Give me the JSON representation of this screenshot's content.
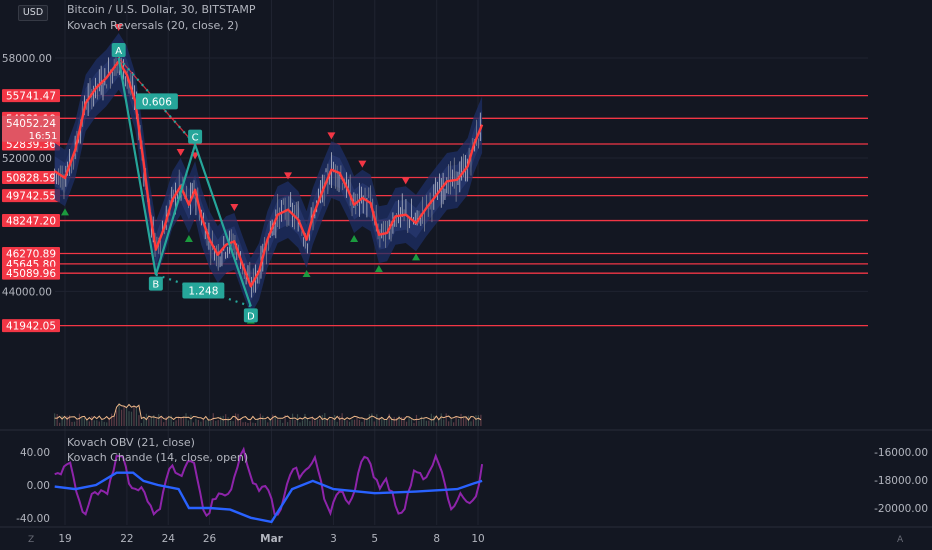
{
  "header": {
    "currency": "USD",
    "title": "Bitcoin / U.S. Dollar, 30, BITSTAMP",
    "indicator": "Kovach Reversals (20, close, 2)"
  },
  "lower_pane": {
    "line1": "Kovach OBV (21, close)",
    "line2": "Kovach Chande (14, close, open)",
    "left_ticks": [
      "40.00",
      "0.00",
      "-40.00"
    ],
    "right_ticks": [
      "-16000.00",
      "-18000.00",
      "-20000.00"
    ]
  },
  "corner_left": "Z",
  "corner_right": "A",
  "colors": {
    "bg": "#131722",
    "red": "#f23645",
    "teal": "#26a69a",
    "blue": "#2962ff",
    "purple": "#8e24aa",
    "green": "#089981"
  },
  "chart_data": {
    "type": "line",
    "axis_prices": [
      "58000.00",
      "52000.00",
      "44000.00"
    ],
    "level_labels": [
      {
        "price": 55741.47,
        "label": "55741.47"
      },
      {
        "price": 54381.19,
        "label": "54381.19"
      },
      {
        "price": 52839.36,
        "label": "52839.36"
      },
      {
        "price": 50828.59,
        "label": "50828.59"
      },
      {
        "price": 49742.55,
        "label": "49742.55"
      },
      {
        "price": 48247.2,
        "label": "48247.20"
      },
      {
        "price": 46270.89,
        "label": "46270.89"
      },
      {
        "price": 45645.8,
        "label": "45645.80"
      },
      {
        "price": 45089.96,
        "label": "45089.96"
      },
      {
        "price": 41942.05,
        "label": "41942.05"
      }
    ],
    "last_price": {
      "price": "54052.24",
      "countdown": "16:51"
    },
    "x_labels": [
      {
        "day": 19,
        "label": "19"
      },
      {
        "day": 22,
        "label": "22"
      },
      {
        "day": 24,
        "label": "24"
      },
      {
        "day": 26,
        "label": "26"
      },
      {
        "day": 29,
        "label": "Mar"
      },
      {
        "day": 32,
        "label": "3"
      },
      {
        "day": 34,
        "label": "5"
      },
      {
        "day": 37,
        "label": "8"
      },
      {
        "day": 39,
        "label": "10"
      }
    ],
    "pattern": [
      {
        "label": "A",
        "day": 21.6,
        "price": 58000
      },
      {
        "label": "B",
        "day": 23.4,
        "price": 45000
      },
      {
        "label": "C",
        "day": 25.3,
        "price": 52800
      },
      {
        "label": "D",
        "day": 28.0,
        "price": 43100
      }
    ],
    "ratios": [
      "0.606",
      "1.248"
    ],
    "series": [
      {
        "values": [
          [
            18.5,
            51200
          ],
          [
            19,
            50800
          ],
          [
            19.5,
            52500
          ],
          [
            20,
            55300
          ],
          [
            20.5,
            56200
          ],
          [
            21,
            56800
          ],
          [
            21.6,
            57800
          ],
          [
            22,
            57000
          ],
          [
            22.4,
            55400
          ],
          [
            22.8,
            51800
          ],
          [
            23.1,
            48800
          ],
          [
            23.4,
            46500
          ],
          [
            23.8,
            47800
          ],
          [
            24.2,
            49500
          ],
          [
            24.6,
            50300
          ],
          [
            25,
            49200
          ],
          [
            25.3,
            50100
          ],
          [
            25.6,
            48500
          ],
          [
            26,
            47100
          ],
          [
            26.4,
            46200
          ],
          [
            26.8,
            46800
          ],
          [
            27.2,
            47000
          ],
          [
            27.6,
            45600
          ],
          [
            28,
            44300
          ],
          [
            28.4,
            45200
          ],
          [
            28.8,
            47100
          ],
          [
            29.3,
            48600
          ],
          [
            29.8,
            48900
          ],
          [
            30.3,
            48300
          ],
          [
            30.7,
            47100
          ],
          [
            31,
            48500
          ],
          [
            31.5,
            50100
          ],
          [
            31.9,
            51300
          ],
          [
            32.3,
            51100
          ],
          [
            32.7,
            50100
          ],
          [
            33,
            49200
          ],
          [
            33.4,
            49600
          ],
          [
            33.8,
            49300
          ],
          [
            34.2,
            47400
          ],
          [
            34.6,
            47500
          ],
          [
            35,
            48500
          ],
          [
            35.5,
            48600
          ],
          [
            36,
            48100
          ],
          [
            36.5,
            49000
          ],
          [
            37,
            49800
          ],
          [
            37.5,
            50600
          ],
          [
            38,
            50700
          ],
          [
            38.5,
            51500
          ],
          [
            38.8,
            52800
          ],
          [
            39.2,
            54000
          ]
        ]
      }
    ]
  }
}
